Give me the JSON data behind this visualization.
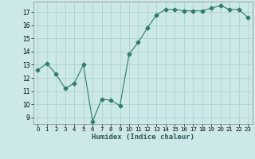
{
  "x": [
    0,
    1,
    2,
    3,
    4,
    5,
    6,
    7,
    8,
    9,
    10,
    11,
    12,
    13,
    14,
    15,
    16,
    17,
    18,
    19,
    20,
    21,
    22,
    23
  ],
  "y": [
    12.6,
    13.1,
    12.3,
    11.2,
    11.6,
    13.0,
    8.7,
    10.4,
    10.3,
    9.9,
    13.8,
    14.7,
    15.8,
    16.8,
    17.2,
    17.2,
    17.1,
    17.1,
    17.1,
    17.3,
    17.5,
    17.2,
    17.2,
    16.6
  ],
  "title": "",
  "xlabel": "Humidex (Indice chaleur)",
  "ylabel": "",
  "xlim": [
    -0.5,
    23.5
  ],
  "ylim": [
    8.5,
    17.8
  ],
  "yticks": [
    9,
    10,
    11,
    12,
    13,
    14,
    15,
    16,
    17
  ],
  "xticks": [
    0,
    1,
    2,
    3,
    4,
    5,
    6,
    7,
    8,
    9,
    10,
    11,
    12,
    13,
    14,
    15,
    16,
    17,
    18,
    19,
    20,
    21,
    22,
    23
  ],
  "line_color": "#2e7d6e",
  "marker": "D",
  "marker_size": 2.5,
  "bg_color": "#cce8e8",
  "grid_color": "#aacece",
  "axes_bg": "#cce8e8"
}
